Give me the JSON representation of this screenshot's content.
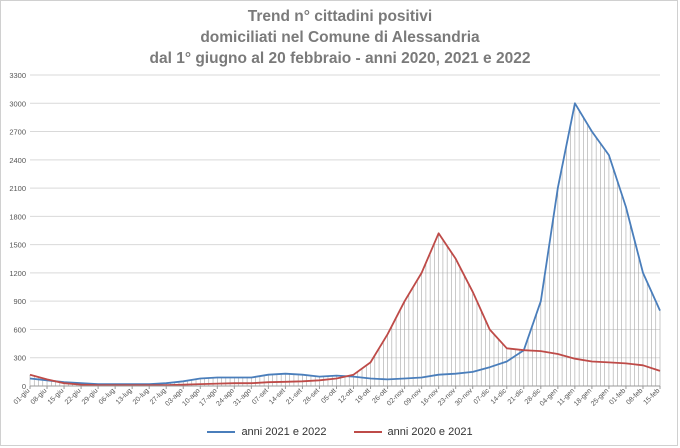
{
  "title_lines": [
    "Trend n° cittadini positivi",
    "domiciliati nel Comune di Alessandria",
    "dal 1° giugno al 20 febbraio - anni 2020, 2021 e 2022"
  ],
  "colors": {
    "series_a": "#4a7ebb",
    "series_b": "#be4b48",
    "grid": "#d9d9d9",
    "drop": "#a6a6a6"
  },
  "chart_data": {
    "type": "line",
    "title": "Trend n° cittadini positivi domiciliati nel Comune di Alessandria dal 1° giugno al 20 febbraio - anni 2020, 2021 e 2022",
    "xlabel": "",
    "ylabel": "",
    "ylim": [
      0,
      3300
    ],
    "yticks": [
      0,
      300,
      600,
      900,
      1200,
      1500,
      1800,
      2100,
      2400,
      2700,
      3000,
      3300
    ],
    "grid": true,
    "legend_position": "bottom",
    "x": [
      "01-giu",
      "08-giu",
      "15-giu",
      "22-giu",
      "29-giu",
      "06-lug",
      "13-lug",
      "20-lug",
      "27-lug",
      "03-ago",
      "10-ago",
      "17-ago",
      "24-ago",
      "31-ago",
      "07-set",
      "14-set",
      "21-set",
      "28-set",
      "05-ott",
      "12-ott",
      "19-ott",
      "26-ott",
      "02-nov",
      "09-nov",
      "16-nov",
      "23-nov",
      "30-nov",
      "07-dic",
      "14-dic",
      "21-dic",
      "28-dic",
      "04-gen",
      "11-gen",
      "18-gen",
      "25-gen",
      "01-feb",
      "08-feb",
      "15-feb"
    ],
    "series": [
      {
        "name": "anni 2021 e 2022",
        "values": [
          80,
          60,
          40,
          30,
          20,
          20,
          20,
          20,
          30,
          50,
          80,
          90,
          90,
          90,
          120,
          130,
          120,
          100,
          110,
          100,
          80,
          70,
          80,
          90,
          120,
          130,
          150,
          200,
          260,
          380,
          900,
          2100,
          3000,
          2700,
          2450,
          1900,
          1200,
          800
        ]
      },
      {
        "name": "anni 2020 e 2021",
        "values": [
          120,
          70,
          30,
          15,
          10,
          10,
          10,
          10,
          10,
          15,
          20,
          25,
          30,
          30,
          40,
          45,
          50,
          60,
          80,
          120,
          250,
          550,
          900,
          1200,
          1620,
          1350,
          1000,
          600,
          400,
          380,
          370,
          340,
          290,
          260,
          250,
          240,
          220,
          160
        ]
      }
    ]
  }
}
